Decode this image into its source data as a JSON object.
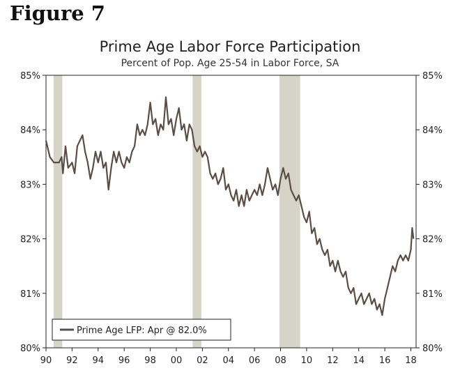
{
  "figure_label": "Figure 7",
  "chart_data": {
    "type": "line",
    "title": "Prime Age Labor Force Participation",
    "subtitle": "Percent of Pop. Age 25-54 in Labor Force, SA",
    "xlabel": "",
    "ylabel": "",
    "xlim": [
      1990,
      2018.4
    ],
    "ylim": [
      80,
      85
    ],
    "y_ticks": [
      "80%",
      "81%",
      "82%",
      "83%",
      "84%",
      "85%"
    ],
    "x_ticks": [
      "90",
      "92",
      "94",
      "96",
      "98",
      "00",
      "02",
      "04",
      "06",
      "08",
      "10",
      "12",
      "14",
      "16",
      "18"
    ],
    "recessions": [
      [
        1990.58,
        1991.25
      ],
      [
        2001.25,
        2001.92
      ],
      [
        2007.92,
        2009.5
      ]
    ],
    "legend": "Prime Age LFP: Apr @ 82.0%",
    "legend_position": "bottom-left",
    "series": [
      {
        "name": "Prime Age LFP",
        "color": "#5a4d44",
        "points": [
          [
            1990.0,
            83.8
          ],
          [
            1990.3,
            83.5
          ],
          [
            1990.6,
            83.4
          ],
          [
            1991.0,
            83.4
          ],
          [
            1991.2,
            83.5
          ],
          [
            1991.3,
            83.2
          ],
          [
            1991.5,
            83.7
          ],
          [
            1991.7,
            83.3
          ],
          [
            1992.0,
            83.4
          ],
          [
            1992.2,
            83.2
          ],
          [
            1992.4,
            83.7
          ],
          [
            1992.6,
            83.8
          ],
          [
            1992.8,
            83.9
          ],
          [
            1993.0,
            83.6
          ],
          [
            1993.2,
            83.4
          ],
          [
            1993.4,
            83.1
          ],
          [
            1993.6,
            83.3
          ],
          [
            1993.8,
            83.6
          ],
          [
            1994.0,
            83.4
          ],
          [
            1994.2,
            83.6
          ],
          [
            1994.4,
            83.3
          ],
          [
            1994.6,
            83.4
          ],
          [
            1994.8,
            82.9
          ],
          [
            1995.0,
            83.3
          ],
          [
            1995.2,
            83.6
          ],
          [
            1995.4,
            83.4
          ],
          [
            1995.6,
            83.6
          ],
          [
            1995.8,
            83.4
          ],
          [
            1996.0,
            83.3
          ],
          [
            1996.2,
            83.5
          ],
          [
            1996.4,
            83.4
          ],
          [
            1996.6,
            83.6
          ],
          [
            1996.8,
            83.7
          ],
          [
            1997.0,
            84.1
          ],
          [
            1997.2,
            83.9
          ],
          [
            1997.4,
            84.0
          ],
          [
            1997.6,
            83.9
          ],
          [
            1997.8,
            84.1
          ],
          [
            1998.0,
            84.5
          ],
          [
            1998.2,
            84.1
          ],
          [
            1998.4,
            84.2
          ],
          [
            1998.6,
            83.9
          ],
          [
            1998.8,
            84.1
          ],
          [
            1999.0,
            84.0
          ],
          [
            1999.2,
            84.6
          ],
          [
            1999.4,
            84.1
          ],
          [
            1999.6,
            84.2
          ],
          [
            1999.8,
            83.9
          ],
          [
            2000.0,
            84.2
          ],
          [
            2000.2,
            84.4
          ],
          [
            2000.4,
            84.0
          ],
          [
            2000.6,
            84.1
          ],
          [
            2000.8,
            83.8
          ],
          [
            2001.0,
            84.1
          ],
          [
            2001.2,
            84.0
          ],
          [
            2001.4,
            83.7
          ],
          [
            2001.6,
            83.6
          ],
          [
            2001.8,
            83.7
          ],
          [
            2002.0,
            83.5
          ],
          [
            2002.2,
            83.6
          ],
          [
            2002.4,
            83.5
          ],
          [
            2002.6,
            83.2
          ],
          [
            2002.8,
            83.1
          ],
          [
            2003.0,
            83.2
          ],
          [
            2003.2,
            83.0
          ],
          [
            2003.4,
            83.1
          ],
          [
            2003.6,
            83.3
          ],
          [
            2003.8,
            82.9
          ],
          [
            2004.0,
            83.0
          ],
          [
            2004.2,
            82.8
          ],
          [
            2004.4,
            82.7
          ],
          [
            2004.6,
            82.9
          ],
          [
            2004.8,
            82.6
          ],
          [
            2005.0,
            82.8
          ],
          [
            2005.2,
            82.6
          ],
          [
            2005.4,
            82.9
          ],
          [
            2005.6,
            82.7
          ],
          [
            2005.8,
            82.8
          ],
          [
            2006.0,
            82.9
          ],
          [
            2006.2,
            82.8
          ],
          [
            2006.4,
            83.0
          ],
          [
            2006.6,
            82.8
          ],
          [
            2006.8,
            83.0
          ],
          [
            2007.0,
            83.3
          ],
          [
            2007.2,
            83.1
          ],
          [
            2007.4,
            82.9
          ],
          [
            2007.6,
            83.0
          ],
          [
            2007.8,
            82.8
          ],
          [
            2008.0,
            83.1
          ],
          [
            2008.2,
            83.3
          ],
          [
            2008.4,
            83.1
          ],
          [
            2008.6,
            83.2
          ],
          [
            2008.8,
            82.9
          ],
          [
            2009.0,
            82.8
          ],
          [
            2009.2,
            82.7
          ],
          [
            2009.4,
            82.8
          ],
          [
            2009.6,
            82.6
          ],
          [
            2009.8,
            82.4
          ],
          [
            2010.0,
            82.3
          ],
          [
            2010.2,
            82.5
          ],
          [
            2010.4,
            82.1
          ],
          [
            2010.6,
            82.2
          ],
          [
            2010.8,
            81.9
          ],
          [
            2011.0,
            82.0
          ],
          [
            2011.2,
            81.8
          ],
          [
            2011.4,
            81.7
          ],
          [
            2011.6,
            81.8
          ],
          [
            2011.8,
            81.5
          ],
          [
            2012.0,
            81.6
          ],
          [
            2012.2,
            81.4
          ],
          [
            2012.4,
            81.6
          ],
          [
            2012.6,
            81.4
          ],
          [
            2012.8,
            81.3
          ],
          [
            2013.0,
            81.4
          ],
          [
            2013.2,
            81.1
          ],
          [
            2013.4,
            81.0
          ],
          [
            2013.6,
            81.1
          ],
          [
            2013.8,
            80.8
          ],
          [
            2014.0,
            80.9
          ],
          [
            2014.2,
            81.0
          ],
          [
            2014.4,
            80.8
          ],
          [
            2014.6,
            80.9
          ],
          [
            2014.8,
            81.0
          ],
          [
            2015.0,
            80.8
          ],
          [
            2015.2,
            80.9
          ],
          [
            2015.4,
            80.7
          ],
          [
            2015.6,
            80.8
          ],
          [
            2015.8,
            80.6
          ],
          [
            2016.0,
            80.9
          ],
          [
            2016.2,
            81.1
          ],
          [
            2016.4,
            81.3
          ],
          [
            2016.6,
            81.5
          ],
          [
            2016.8,
            81.4
          ],
          [
            2017.0,
            81.6
          ],
          [
            2017.2,
            81.7
          ],
          [
            2017.4,
            81.6
          ],
          [
            2017.6,
            81.7
          ],
          [
            2017.8,
            81.6
          ],
          [
            2018.0,
            81.8
          ],
          [
            2018.1,
            82.2
          ],
          [
            2018.2,
            82.0
          ]
        ]
      }
    ]
  }
}
